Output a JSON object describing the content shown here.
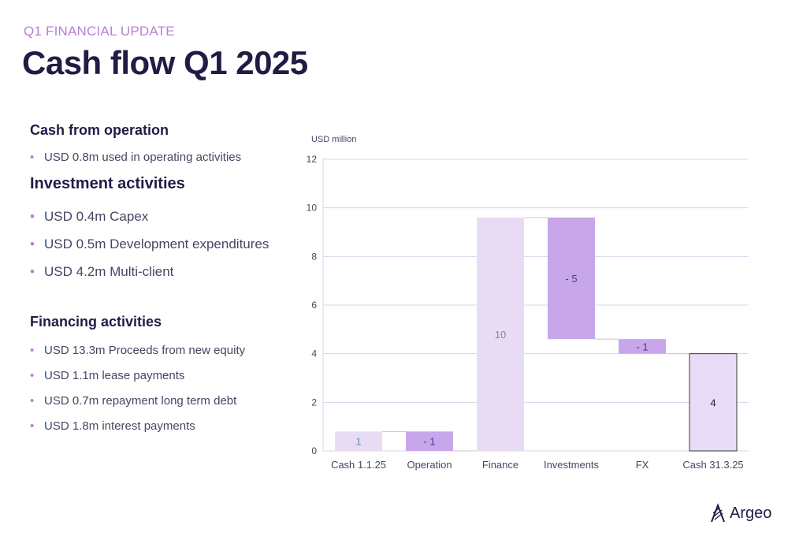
{
  "header": {
    "eyebrow": "Q1 FINANCIAL UPDATE",
    "title": "Cash flow Q1 2025"
  },
  "sections": {
    "operation": {
      "heading": "Cash from operation",
      "items": [
        "USD 0.8m used in operating activities"
      ]
    },
    "investment": {
      "heading": "Investment activities",
      "items": [
        "USD 0.4m Capex",
        "USD 0.5m Development expenditures",
        "USD 4.2m Multi-client"
      ]
    },
    "financing": {
      "heading": "Financing activities",
      "items": [
        "USD 13.3m Proceeds from new equity",
        "USD 1.1m lease payments",
        "USD 0.7m repayment long term debt",
        "USD 1.8m interest payments"
      ]
    }
  },
  "logo": {
    "text": "Argeo",
    "icon": "argeo-logo-icon"
  },
  "chart_data": {
    "type": "waterfall",
    "unit_label": "USD million",
    "ylim": [
      0,
      12
    ],
    "yticks": [
      0,
      2,
      4,
      6,
      8,
      10,
      12
    ],
    "grid": true,
    "categories": [
      "Cash 1.1.25",
      "Operation",
      "Finance",
      "Investments",
      "FX",
      "Cash 31.3.25"
    ],
    "bars": [
      {
        "category": "Cash 1.1.25",
        "kind": "total",
        "start": 0,
        "end": 0.8,
        "label": "1"
      },
      {
        "category": "Operation",
        "kind": "decrease",
        "start": 0.8,
        "end": 0.0,
        "label": "- 1"
      },
      {
        "category": "Finance",
        "kind": "increase",
        "start": 0.0,
        "end": 9.6,
        "label": "10"
      },
      {
        "category": "Investments",
        "kind": "decrease",
        "start": 9.6,
        "end": 4.6,
        "label": "- 5"
      },
      {
        "category": "FX",
        "kind": "decrease",
        "start": 4.6,
        "end": 4.0,
        "label": "- 1"
      },
      {
        "category": "Cash 31.3.25",
        "kind": "total",
        "start": 0,
        "end": 4.0,
        "label": "4"
      }
    ],
    "colors": {
      "total_fill": "#e8dcf5",
      "increase_fill": "#e8dcf5",
      "decrease_fill": "#c7a6ea",
      "final_fill": "#e9dcf6",
      "final_stroke": "#3a3a3a",
      "light_label": "#6a8bb8",
      "dark_label": "#4a3a9a",
      "final_label": "#241a45",
      "grid": "#d9d4ea",
      "connector": "#c8c8c8"
    }
  }
}
